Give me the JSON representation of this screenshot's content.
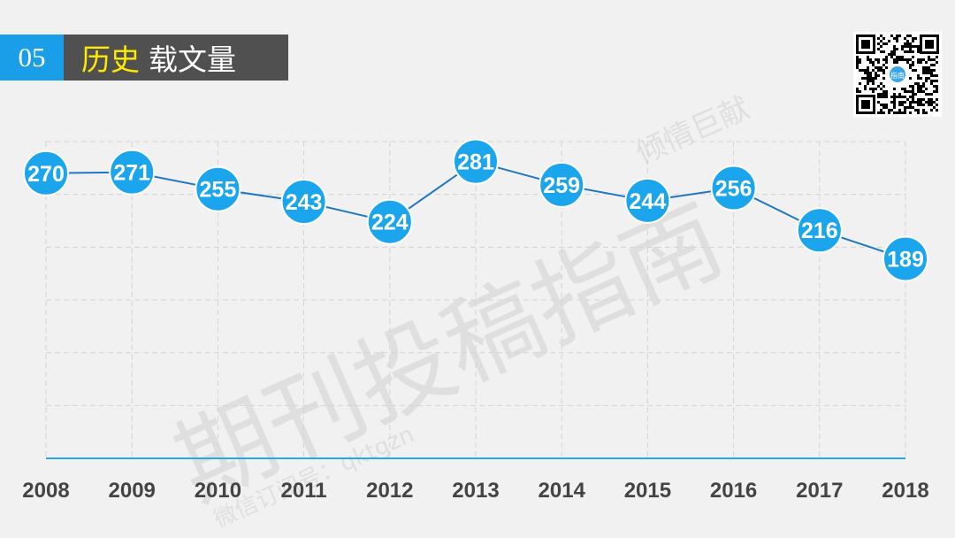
{
  "header": {
    "number": "05",
    "title_highlight": "历史",
    "title_rest": "载文量",
    "number_bg": "#1a9ee8",
    "title_bg": "#505050",
    "highlight_color": "#ffea00"
  },
  "qr": {
    "icon": "qr-code-icon",
    "center_text": "指南"
  },
  "watermarks": {
    "big": "期刊投稿指南",
    "small": "倾情巨献",
    "wechat": "微信订阅号：qktgzn"
  },
  "chart_data": {
    "type": "line",
    "categories": [
      "2008",
      "2009",
      "2010",
      "2011",
      "2012",
      "2013",
      "2014",
      "2015",
      "2016",
      "2017",
      "2018"
    ],
    "series": [
      {
        "values": [
          270,
          271,
          255,
          243,
          224,
          281,
          259,
          244,
          256,
          216,
          189
        ]
      }
    ],
    "title": "",
    "xlabel": "",
    "ylabel": "",
    "ylim": [
      0,
      300
    ],
    "grid": true,
    "legend": "none",
    "data_labels": true,
    "colors": {
      "line": "#1f77c4",
      "marker": "#1aa5ec",
      "marker_border": "#ffffff",
      "axis": "#29a8e8"
    }
  }
}
